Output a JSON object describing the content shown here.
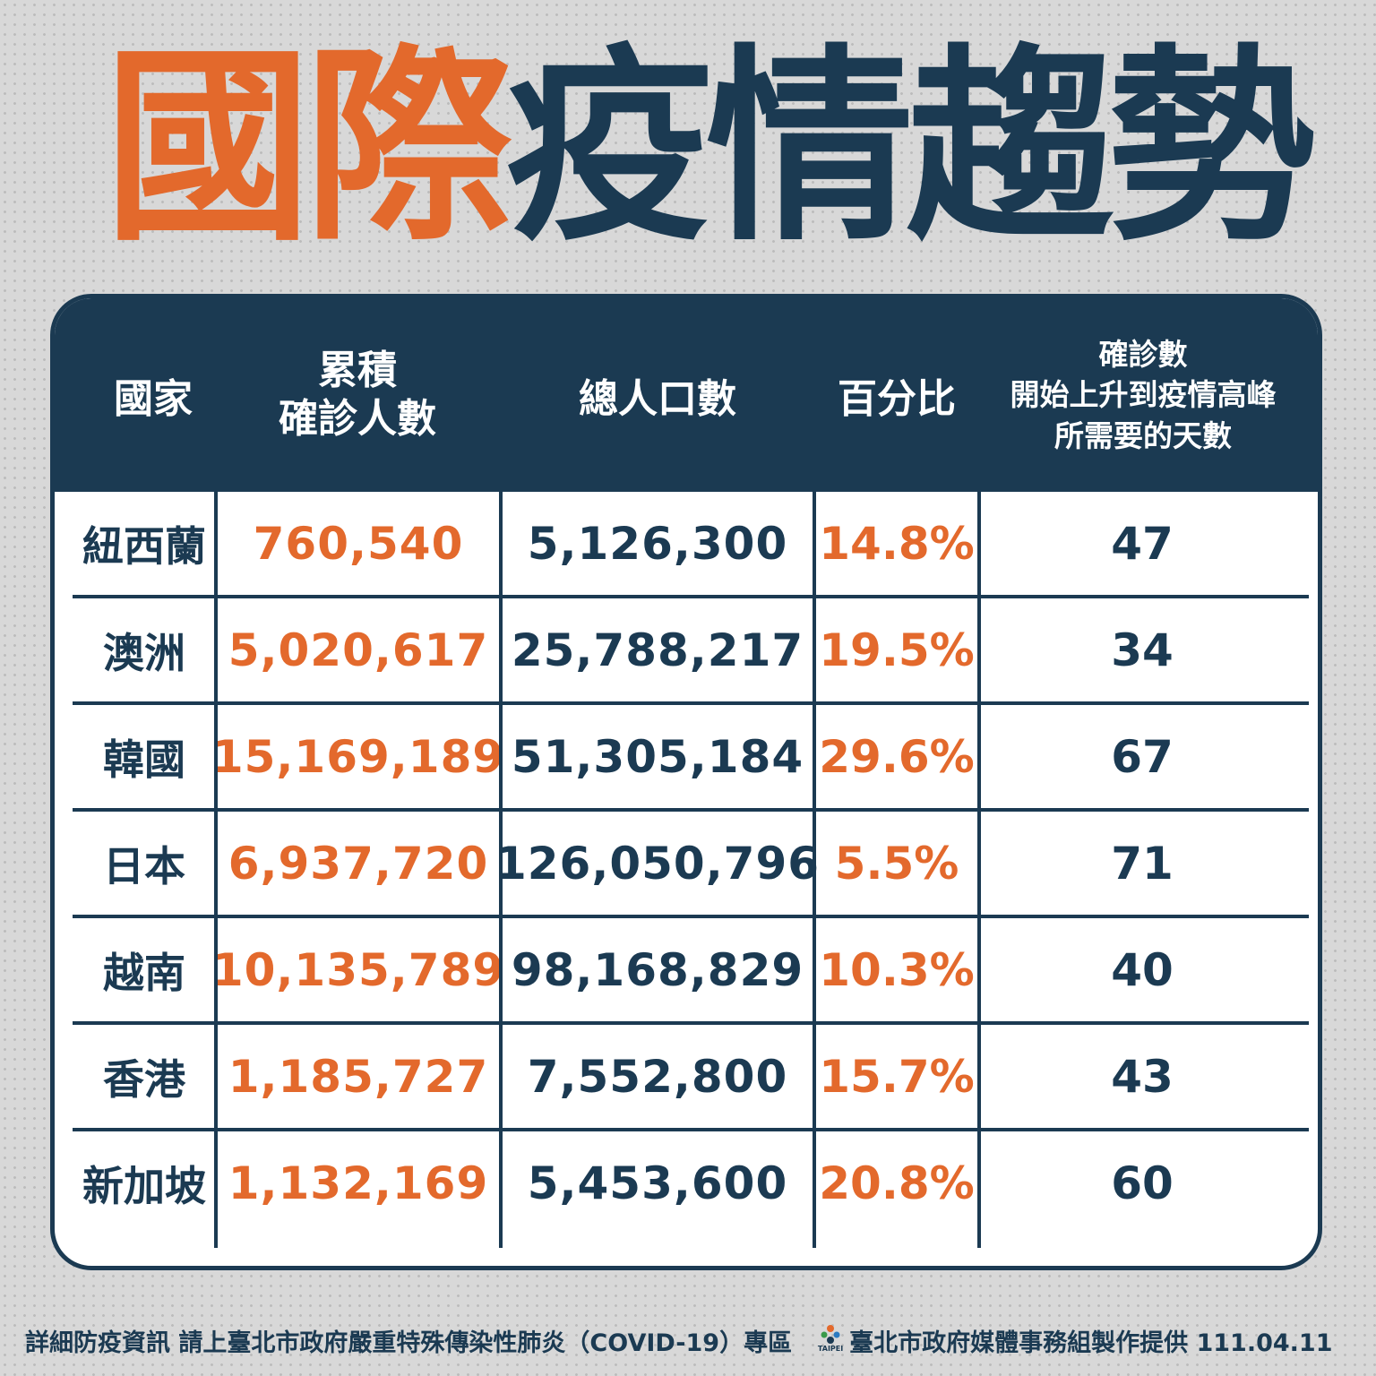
{
  "title": {
    "part1": "國際",
    "part2": "疫情趨勢"
  },
  "table": {
    "headers": [
      {
        "lines": [
          "國家"
        ]
      },
      {
        "lines": [
          "累積",
          "確診人數"
        ]
      },
      {
        "lines": [
          "總人口數"
        ]
      },
      {
        "lines": [
          "百分比"
        ]
      },
      {
        "lines": [
          "確診數",
          "開始上升到疫情高峰",
          "所需要的天數"
        ]
      }
    ],
    "rows": [
      {
        "country": "紐西蘭",
        "cases": "760,540",
        "population": "5,126,300",
        "percent": "14.8%",
        "days": "47"
      },
      {
        "country": "澳洲",
        "cases": "5,020,617",
        "population": "25,788,217",
        "percent": "19.5%",
        "days": "34"
      },
      {
        "country": "韓國",
        "cases": "15,169,189",
        "population": "51,305,184",
        "percent": "29.6%",
        "days": "67"
      },
      {
        "country": "日本",
        "cases": "6,937,720",
        "population": "126,050,796",
        "percent": "5.5%",
        "days": "71"
      },
      {
        "country": "越南",
        "cases": "10,135,789",
        "population": "98,168,829",
        "percent": "10.3%",
        "days": "40"
      },
      {
        "country": "香港",
        "cases": "1,185,727",
        "population": "7,552,800",
        "percent": "15.7%",
        "days": "43"
      },
      {
        "country": "新加坡",
        "cases": "1,132,169",
        "population": "5,453,600",
        "percent": "20.8%",
        "days": "60"
      }
    ]
  },
  "footer": {
    "info": "詳細防疫資訊 請上臺北市政府嚴重特殊傳染性肺炎（COVID-19）專區",
    "logo_text": "TAIPEI",
    "credit": "臺北市政府媒體事務組製作提供 111.04.11"
  },
  "colors": {
    "navy": "#1b3a52",
    "orange": "#e3692c",
    "background": "#d8d8d8"
  }
}
